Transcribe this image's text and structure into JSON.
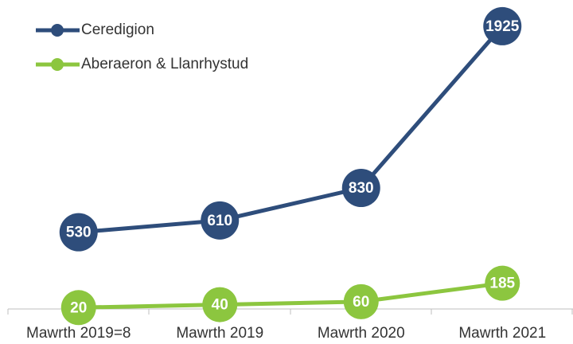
{
  "chart_data": {
    "type": "line",
    "categories": [
      "Mawrth 2019=8",
      "Mawrth 2019",
      "Mawrth 2020",
      "Mawrth 2021"
    ],
    "series": [
      {
        "name": "Ceredigion",
        "color": "#2e4d7b",
        "values": [
          530,
          610,
          830,
          1925
        ]
      },
      {
        "name": "Aberaeron & Llanrhystud",
        "color": "#8cc63f",
        "values": [
          20,
          40,
          60,
          185
        ]
      }
    ],
    "ylim": [
      0,
      2000
    ],
    "legend": "top-left"
  }
}
